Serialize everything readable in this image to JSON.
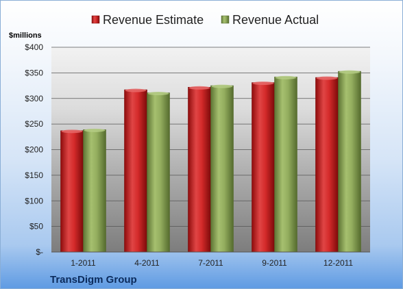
{
  "chart_data": {
    "type": "bar",
    "categories": [
      "1-2011",
      "4-2011",
      "7-2011",
      "9-2011",
      "12-2011"
    ],
    "series": [
      {
        "name": "Revenue Estimate",
        "values": [
          237,
          317,
          322,
          331,
          341
        ],
        "color": "#c41e1e"
      },
      {
        "name": "Revenue Actual",
        "values": [
          239,
          311,
          325,
          342,
          353
        ],
        "color": "#8aa55a"
      }
    ],
    "y_tick_labels": [
      "$-",
      "$50",
      "$100",
      "$150",
      "$200",
      "$250",
      "$300",
      "$350",
      "$400"
    ],
    "y_tick_values": [
      0,
      50,
      100,
      150,
      200,
      250,
      300,
      350,
      400
    ],
    "ylim": [
      0,
      400
    ],
    "ylabel": "$millions",
    "xlabel": "",
    "title": "",
    "legend_position": "top",
    "grid": true
  },
  "footer": {
    "company": "TransDigm Group"
  }
}
